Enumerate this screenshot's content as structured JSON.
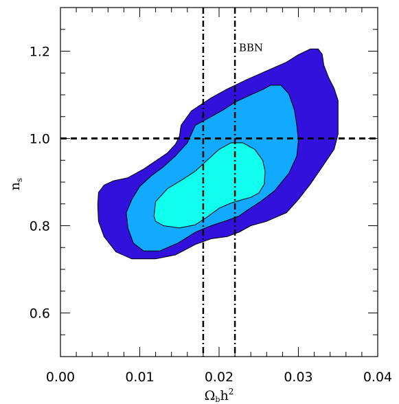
{
  "chart_data": {
    "type": "contour",
    "title": "",
    "xlabel": "Ω",
    "xlabel_sub": "b",
    "xlabel_rest": "h",
    "xlabel_sup": "2",
    "ylabel": "n",
    "ylabel_sub": "s",
    "xlim": [
      0.0,
      0.04
    ],
    "ylim": [
      0.5,
      1.3
    ],
    "x_ticks": [
      0.0,
      0.01,
      0.02,
      0.03,
      0.04
    ],
    "x_tick_labels": [
      "0.00",
      "0.01",
      "0.02",
      "0.03",
      "0.04"
    ],
    "y_ticks": [
      0.6,
      0.8,
      1.0,
      1.2
    ],
    "y_tick_labels": [
      "0.6",
      "0.8",
      "1.0",
      "1.2"
    ],
    "grid": false,
    "colors": {
      "outer": "#3311dd",
      "middle": "#11aaff",
      "inner": "#11ffee",
      "line": "#000000"
    },
    "reference_lines": {
      "horizontal": {
        "y": 1.0,
        "style": "dashed"
      },
      "vertical": [
        {
          "x": 0.018,
          "style": "dash-dot"
        },
        {
          "x": 0.022,
          "style": "dash-dot"
        }
      ]
    },
    "annotation": {
      "text": "BBN",
      "x": 0.0225,
      "y": 1.2
    },
    "contours": [
      {
        "level": "outer",
        "points": [
          [
            0.0047,
            0.848
          ],
          [
            0.0048,
            0.876
          ],
          [
            0.0055,
            0.893
          ],
          [
            0.0067,
            0.903
          ],
          [
            0.0085,
            0.91
          ],
          [
            0.0105,
            0.93
          ],
          [
            0.0118,
            0.946
          ],
          [
            0.0135,
            0.967
          ],
          [
            0.0145,
            0.987
          ],
          [
            0.015,
            1.005
          ],
          [
            0.0152,
            1.03
          ],
          [
            0.0165,
            1.063
          ],
          [
            0.019,
            1.093
          ],
          [
            0.021,
            1.113
          ],
          [
            0.0235,
            1.135
          ],
          [
            0.026,
            1.155
          ],
          [
            0.0285,
            1.175
          ],
          [
            0.03,
            1.192
          ],
          [
            0.0315,
            1.205
          ],
          [
            0.0325,
            1.205
          ],
          [
            0.033,
            1.193
          ],
          [
            0.0332,
            1.168
          ],
          [
            0.0338,
            1.14
          ],
          [
            0.0345,
            1.115
          ],
          [
            0.035,
            1.087
          ],
          [
            0.035,
            1.05
          ],
          [
            0.035,
            1.01
          ],
          [
            0.0345,
            0.975
          ],
          [
            0.033,
            0.935
          ],
          [
            0.0315,
            0.895
          ],
          [
            0.03,
            0.86
          ],
          [
            0.0285,
            0.83
          ],
          [
            0.026,
            0.81
          ],
          [
            0.024,
            0.8
          ],
          [
            0.0225,
            0.785
          ],
          [
            0.021,
            0.775
          ],
          [
            0.019,
            0.77
          ],
          [
            0.017,
            0.757
          ],
          [
            0.0145,
            0.733
          ],
          [
            0.012,
            0.724
          ],
          [
            0.009,
            0.724
          ],
          [
            0.007,
            0.74
          ],
          [
            0.0055,
            0.775
          ],
          [
            0.0048,
            0.81
          ]
        ]
      },
      {
        "level": "middle",
        "points": [
          [
            0.0083,
            0.83
          ],
          [
            0.009,
            0.86
          ],
          [
            0.01,
            0.89
          ],
          [
            0.0115,
            0.915
          ],
          [
            0.013,
            0.935
          ],
          [
            0.0145,
            0.96
          ],
          [
            0.016,
            0.99
          ],
          [
            0.017,
            1.03
          ],
          [
            0.019,
            1.05
          ],
          [
            0.0205,
            1.065
          ],
          [
            0.022,
            1.083
          ],
          [
            0.024,
            1.1
          ],
          [
            0.0255,
            1.112
          ],
          [
            0.0265,
            1.122
          ],
          [
            0.0278,
            1.122
          ],
          [
            0.0288,
            1.102
          ],
          [
            0.0295,
            1.065
          ],
          [
            0.0298,
            1.03
          ],
          [
            0.03,
            0.995
          ],
          [
            0.0298,
            0.96
          ],
          [
            0.0288,
            0.92
          ],
          [
            0.027,
            0.88
          ],
          [
            0.0252,
            0.855
          ],
          [
            0.0235,
            0.835
          ],
          [
            0.0225,
            0.822
          ],
          [
            0.021,
            0.812
          ],
          [
            0.019,
            0.8
          ],
          [
            0.017,
            0.785
          ],
          [
            0.0148,
            0.76
          ],
          [
            0.0125,
            0.742
          ],
          [
            0.0105,
            0.742
          ],
          [
            0.0092,
            0.76
          ],
          [
            0.0085,
            0.795
          ]
        ]
      },
      {
        "level": "inner",
        "points": [
          [
            0.0118,
            0.822
          ],
          [
            0.012,
            0.855
          ],
          [
            0.0135,
            0.885
          ],
          [
            0.0155,
            0.907
          ],
          [
            0.017,
            0.925
          ],
          [
            0.0185,
            0.95
          ],
          [
            0.02,
            0.975
          ],
          [
            0.0215,
            0.99
          ],
          [
            0.023,
            0.99
          ],
          [
            0.0245,
            0.975
          ],
          [
            0.0255,
            0.95
          ],
          [
            0.0258,
            0.925
          ],
          [
            0.0257,
            0.895
          ],
          [
            0.025,
            0.875
          ],
          [
            0.024,
            0.865
          ],
          [
            0.023,
            0.86
          ],
          [
            0.0215,
            0.852
          ],
          [
            0.02,
            0.84
          ],
          [
            0.0185,
            0.82
          ],
          [
            0.017,
            0.802
          ],
          [
            0.015,
            0.795
          ],
          [
            0.013,
            0.8
          ],
          [
            0.012,
            0.81
          ]
        ]
      }
    ]
  }
}
